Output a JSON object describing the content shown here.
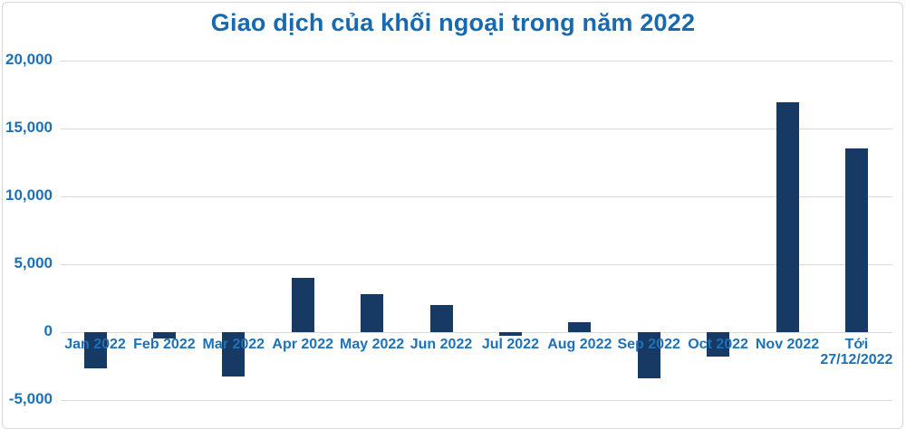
{
  "title": "Giao dịch của khối ngoại trong năm 2022",
  "colors": {
    "background": "#ffffff",
    "card_border": "#d8d8d8",
    "title": "#1769b0",
    "axis_label": "#1c71b8",
    "bar": "#163a64",
    "gridline": "#d9d9d9"
  },
  "chart_data": {
    "type": "bar",
    "title": "Giao dịch của khối ngoại trong năm 2022",
    "categories": [
      "Jan 2022",
      "Feb 2022",
      "Mar 2022",
      "Apr 2022",
      "May 2022",
      "Jun 2022",
      "Jul 2022",
      "Aug 2022",
      "Sep 2022",
      "Oct 2022",
      "Nov 2022",
      "Tới\n27/12/2022"
    ],
    "values": [
      -2700,
      -500,
      -3300,
      4000,
      2800,
      2000,
      -300,
      700,
      -3400,
      -1800,
      16900,
      13500
    ],
    "xlabel": "",
    "ylabel": "",
    "ylim": [
      -5000,
      20000
    ],
    "yticks": [
      20000,
      15000,
      10000,
      5000,
      0,
      -5000
    ],
    "ytick_labels": [
      "20,000",
      "15,000",
      "10,000",
      "5,000",
      "0",
      "-5,000"
    ],
    "grid": true,
    "legend_position": "none"
  }
}
